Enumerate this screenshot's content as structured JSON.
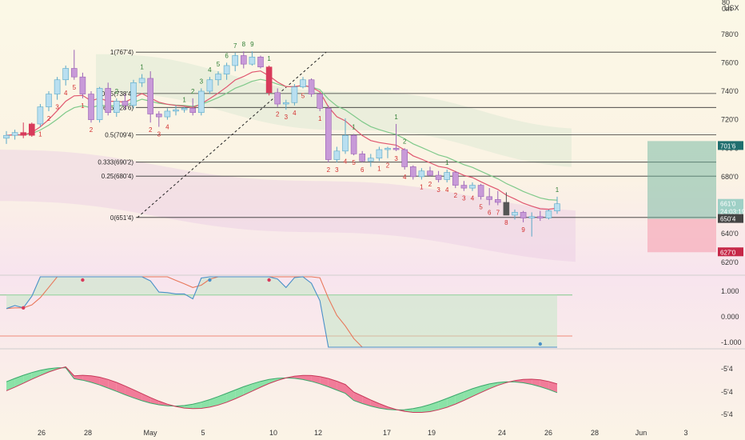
{
  "header": {
    "currency_top": "80",
    "currency_mid": "0m",
    "currency_unit": "USX"
  },
  "colors": {
    "up_body": "#b9dff0",
    "up_border": "#5aa9c8",
    "down_body": "#c89ad8",
    "down_border": "#9a62b5",
    "red_candle": "#d83a5a",
    "dark_candle": "#555555",
    "fib_line": "#333333",
    "td_setup_up": "#2e7d32",
    "td_setup_down": "#d32f2f",
    "ema_red": "#e0566f",
    "ema_green": "#7fc98a",
    "macd_blue": "#4a90c8",
    "macd_orange": "#e8775a",
    "osc_green": "#7ee0a0",
    "osc_red": "#ef6f90",
    "long_target": "#6fb5a0",
    "long_stop": "#f5a0b0",
    "tag_current": "#1f6e6e",
    "tag_stop": "#c62848",
    "tag_entry": "#444444"
  },
  "chart_data": {
    "type": "candlestick",
    "price_axis": {
      "ylim": [
        6120,
        8040
      ],
      "ticks": [
        "780'0",
        "760'0",
        "740'0",
        "720'0",
        "700'0",
        "680'0",
        "640'0",
        "620'0"
      ],
      "tick_values": [
        7800,
        7600,
        7400,
        7200,
        7000,
        6800,
        6400,
        6200
      ]
    },
    "price_tags": [
      {
        "label": "701'6",
        "value": 7016,
        "kind": "current"
      },
      {
        "label": "661'0",
        "value": 6610,
        "kind": "plain"
      },
      {
        "label": "24:03:19",
        "value": 6555,
        "kind": "timer"
      },
      {
        "label": "650'4",
        "value": 6504,
        "kind": "entry"
      },
      {
        "label": "627'0",
        "value": 6270,
        "kind": "stop"
      }
    ],
    "date_axis": {
      "labels": [
        "26",
        "28",
        "May",
        "5",
        "10",
        "12",
        "17",
        "19",
        "24",
        "26",
        "28",
        "Jun",
        "3"
      ]
    },
    "fib_levels": [
      {
        "label": "1(767'4)",
        "value": 7674
      },
      {
        "label": "0.75(738'4)",
        "value": 7384
      },
      {
        "label": "0.666(728'6)",
        "value": 7286
      },
      {
        "label": "0.5(709'4)",
        "value": 7094
      },
      {
        "label": "0.333(690'2)",
        "value": 6902
      },
      {
        "label": "0.25(680'4)",
        "value": 6804
      },
      {
        "label": "0(651'4)",
        "value": 6514
      }
    ],
    "candles": [
      [
        7070,
        7120,
        7030,
        7090
      ],
      [
        7090,
        7130,
        7060,
        7110
      ],
      [
        7110,
        7180,
        7070,
        7090
      ],
      [
        7090,
        7180,
        7080,
        7170
      ],
      [
        7170,
        7310,
        7150,
        7290
      ],
      [
        7290,
        7400,
        7260,
        7380
      ],
      [
        7380,
        7500,
        7340,
        7480
      ],
      [
        7480,
        7580,
        7440,
        7560
      ],
      [
        7560,
        7690,
        7480,
        7500
      ],
      [
        7500,
        7530,
        7350,
        7380
      ],
      [
        7380,
        7400,
        7180,
        7200
      ],
      [
        7200,
        7430,
        7180,
        7420
      ],
      [
        7420,
        7460,
        7230,
        7250
      ],
      [
        7250,
        7350,
        7220,
        7330
      ],
      [
        7330,
        7380,
        7270,
        7300
      ],
      [
        7300,
        7480,
        7280,
        7460
      ],
      [
        7460,
        7520,
        7430,
        7490
      ],
      [
        7490,
        7540,
        7180,
        7240
      ],
      [
        7240,
        7260,
        7150,
        7220
      ],
      [
        7220,
        7280,
        7200,
        7260
      ],
      [
        7260,
        7300,
        7230,
        7270
      ],
      [
        7270,
        7290,
        7250,
        7280
      ],
      [
        7280,
        7350,
        7230,
        7250
      ],
      [
        7250,
        7420,
        7230,
        7400
      ],
      [
        7400,
        7500,
        7380,
        7480
      ],
      [
        7480,
        7540,
        7440,
        7520
      ],
      [
        7520,
        7600,
        7480,
        7580
      ],
      [
        7580,
        7670,
        7540,
        7650
      ],
      [
        7650,
        7680,
        7560,
        7590
      ],
      [
        7590,
        7680,
        7580,
        7640
      ],
      [
        7640,
        7650,
        7560,
        7570
      ],
      [
        7570,
        7580,
        7370,
        7390
      ],
      [
        7390,
        7420,
        7290,
        7310
      ],
      [
        7310,
        7340,
        7270,
        7320
      ],
      [
        7320,
        7450,
        7300,
        7430
      ],
      [
        7430,
        7500,
        7420,
        7480
      ],
      [
        7480,
        7490,
        7360,
        7380
      ],
      [
        7380,
        7390,
        7260,
        7280
      ],
      [
        7280,
        7300,
        6900,
        6920
      ],
      [
        6920,
        7010,
        6900,
        6980
      ],
      [
        6980,
        7210,
        6960,
        7090
      ],
      [
        7090,
        7100,
        6950,
        6960
      ],
      [
        6960,
        6980,
        6900,
        6910
      ],
      [
        6910,
        6960,
        6870,
        6930
      ],
      [
        6930,
        7010,
        6910,
        6990
      ],
      [
        6990,
        7010,
        6930,
        7000
      ],
      [
        7000,
        7170,
        6980,
        6990
      ],
      [
        6990,
        7000,
        6850,
        6870
      ],
      [
        6870,
        6880,
        6780,
        6800
      ],
      [
        6800,
        6860,
        6780,
        6840
      ],
      [
        6840,
        6870,
        6800,
        6810
      ],
      [
        6810,
        6840,
        6760,
        6780
      ],
      [
        6780,
        6850,
        6760,
        6830
      ],
      [
        6830,
        6840,
        6720,
        6740
      ],
      [
        6740,
        6770,
        6700,
        6720
      ],
      [
        6720,
        6760,
        6700,
        6740
      ],
      [
        6740,
        6750,
        6640,
        6660
      ],
      [
        6660,
        6720,
        6600,
        6640
      ],
      [
        6640,
        6700,
        6600,
        6620
      ],
      [
        6620,
        6690,
        6530,
        6530
      ],
      [
        6530,
        6570,
        6500,
        6550
      ],
      [
        6550,
        6560,
        6480,
        6510
      ],
      [
        6510,
        6550,
        6380,
        6520
      ],
      [
        6520,
        6560,
        6490,
        6510
      ],
      [
        6510,
        6570,
        6500,
        6560
      ],
      [
        6560,
        6660,
        6540,
        6610
      ]
    ],
    "td_labels": [
      {
        "text": "1",
        "index": 4,
        "side": "down"
      },
      {
        "text": "2",
        "index": 5,
        "side": "down"
      },
      {
        "text": "3",
        "index": 6,
        "side": "down"
      },
      {
        "text": "4",
        "index": 7,
        "side": "down"
      },
      {
        "text": "5",
        "index": 8,
        "side": "down"
      },
      {
        "text": "1",
        "index": 9,
        "side": "down"
      },
      {
        "text": "2",
        "index": 10,
        "side": "down"
      },
      {
        "text": "2",
        "index": 13,
        "side": "up"
      },
      {
        "text": "1",
        "index": 16,
        "side": "up"
      },
      {
        "text": "2",
        "index": 17,
        "side": "down"
      },
      {
        "text": "3",
        "index": 18,
        "side": "down"
      },
      {
        "text": "4",
        "index": 19,
        "side": "down"
      },
      {
        "text": "1",
        "index": 21,
        "side": "up"
      },
      {
        "text": "2",
        "index": 22,
        "side": "up"
      },
      {
        "text": "3",
        "index": 23,
        "side": "up"
      },
      {
        "text": "4",
        "index": 24,
        "side": "up"
      },
      {
        "text": "5",
        "index": 25,
        "side": "up"
      },
      {
        "text": "6",
        "index": 26,
        "side": "up"
      },
      {
        "text": "7",
        "index": 27,
        "side": "up"
      },
      {
        "text": "8",
        "index": 28,
        "side": "up"
      },
      {
        "text": "9",
        "index": 29,
        "side": "up"
      },
      {
        "text": "1",
        "index": 31,
        "side": "up"
      },
      {
        "text": "2",
        "index": 32,
        "side": "down"
      },
      {
        "text": "3",
        "index": 33,
        "side": "down"
      },
      {
        "text": "4",
        "index": 34,
        "side": "down"
      },
      {
        "text": "5",
        "index": 35,
        "side": "down"
      },
      {
        "text": "1",
        "index": 37,
        "side": "down"
      },
      {
        "text": "2",
        "index": 38,
        "side": "down"
      },
      {
        "text": "3",
        "index": 39,
        "side": "down"
      },
      {
        "text": "4",
        "index": 40,
        "side": "down"
      },
      {
        "text": "5",
        "index": 41,
        "side": "down"
      },
      {
        "text": "6",
        "index": 42,
        "side": "down"
      },
      {
        "text": "1",
        "index": 41,
        "side": "up"
      },
      {
        "text": "1",
        "index": 44,
        "side": "down"
      },
      {
        "text": "2",
        "index": 45,
        "side": "down"
      },
      {
        "text": "3",
        "index": 46,
        "side": "down"
      },
      {
        "text": "4",
        "index": 47,
        "side": "down"
      },
      {
        "text": "1",
        "index": 46,
        "side": "up"
      },
      {
        "text": "2",
        "index": 47,
        "side": "up"
      },
      {
        "text": "1",
        "index": 49,
        "side": "down"
      },
      {
        "text": "2",
        "index": 50,
        "side": "down"
      },
      {
        "text": "3",
        "index": 51,
        "side": "down"
      },
      {
        "text": "4",
        "index": 52,
        "side": "down"
      },
      {
        "text": "1",
        "index": 52,
        "side": "up"
      },
      {
        "text": "2",
        "index": 53,
        "side": "down"
      },
      {
        "text": "3",
        "index": 54,
        "side": "down"
      },
      {
        "text": "4",
        "index": 55,
        "side": "down"
      },
      {
        "text": "5",
        "index": 56,
        "side": "down"
      },
      {
        "text": "6",
        "index": 57,
        "side": "down"
      },
      {
        "text": "7",
        "index": 58,
        "side": "down"
      },
      {
        "text": "8",
        "index": 59,
        "side": "down"
      },
      {
        "text": "9",
        "index": 61,
        "side": "down"
      },
      {
        "text": "1",
        "index": 65,
        "side": "up"
      }
    ],
    "macd_axis": {
      "ticks": [
        "1.000",
        "0.000",
        "-1.000"
      ],
      "tick_values": [
        1,
        0,
        -1
      ]
    },
    "osc_axis": {
      "ticks": [
        "-5'4",
        "-5'4",
        "-5'4"
      ]
    }
  }
}
